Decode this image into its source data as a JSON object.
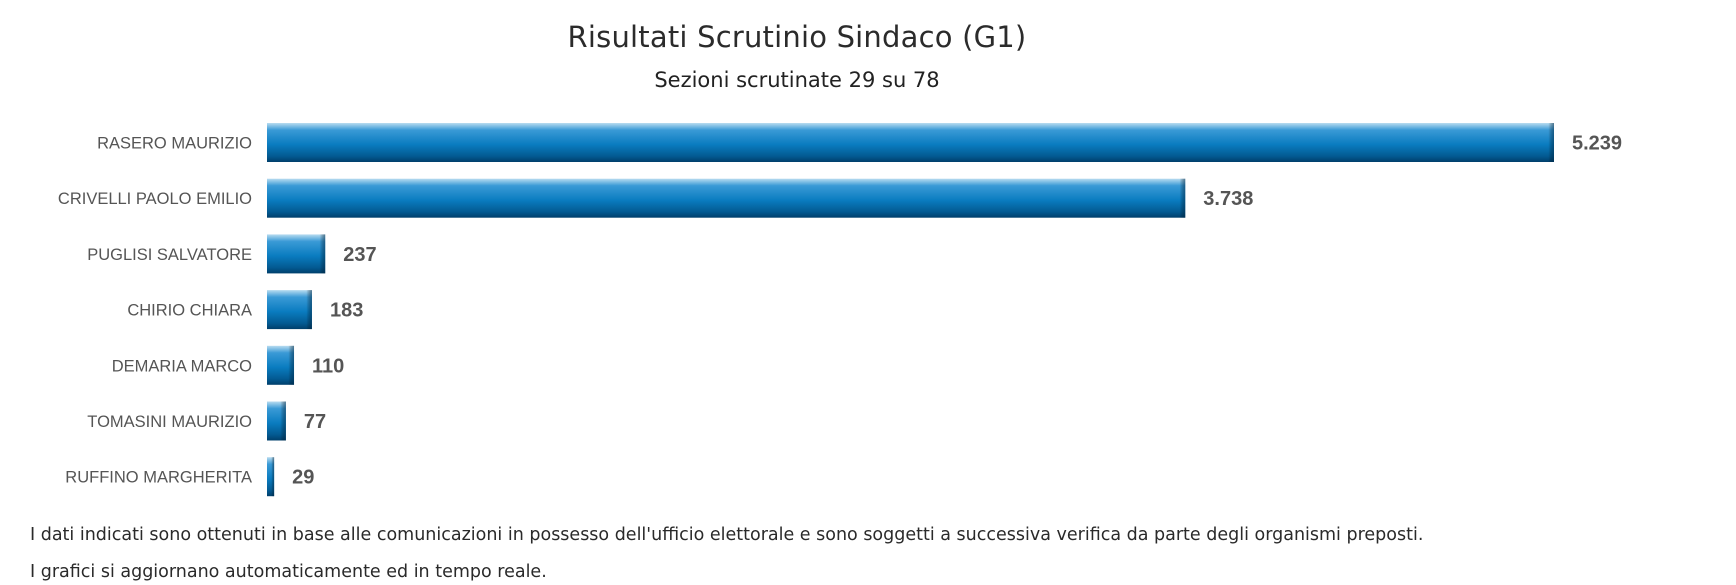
{
  "chart_data": {
    "type": "bar",
    "orientation": "horizontal",
    "title": "Risultati Scrutinio Sindaco (G1)",
    "subtitle": "Sezioni scrutinate 29 su 78",
    "categories": [
      "RASERO MAURIZIO",
      "CRIVELLI PAOLO EMILIO",
      "PUGLISI SALVATORE",
      "CHIRIO CHIARA",
      "DEMARIA MARCO",
      "TOMASINI MAURIZIO",
      "RUFFINO MARGHERITA"
    ],
    "values": [
      5239,
      3738,
      237,
      183,
      110,
      77,
      29
    ],
    "value_labels": [
      "5.239",
      "3.738",
      "237",
      "183",
      "110",
      "77",
      "29"
    ],
    "xlim": [
      0,
      5239
    ],
    "grid": false,
    "legend": "none",
    "colors": {
      "bar_light": "#b8dcf0",
      "bar_mid": "#0a7cc0",
      "bar_dark": "#003f6b",
      "label": "#555555"
    }
  },
  "footnotes": [
    "I dati indicati sono ottenuti in base alle comunicazioni in possesso dell'ufficio elettorale e sono soggetti a successiva verifica da parte degli organismi preposti.",
    "I grafici si aggiornano automaticamente ed in tempo reale."
  ]
}
